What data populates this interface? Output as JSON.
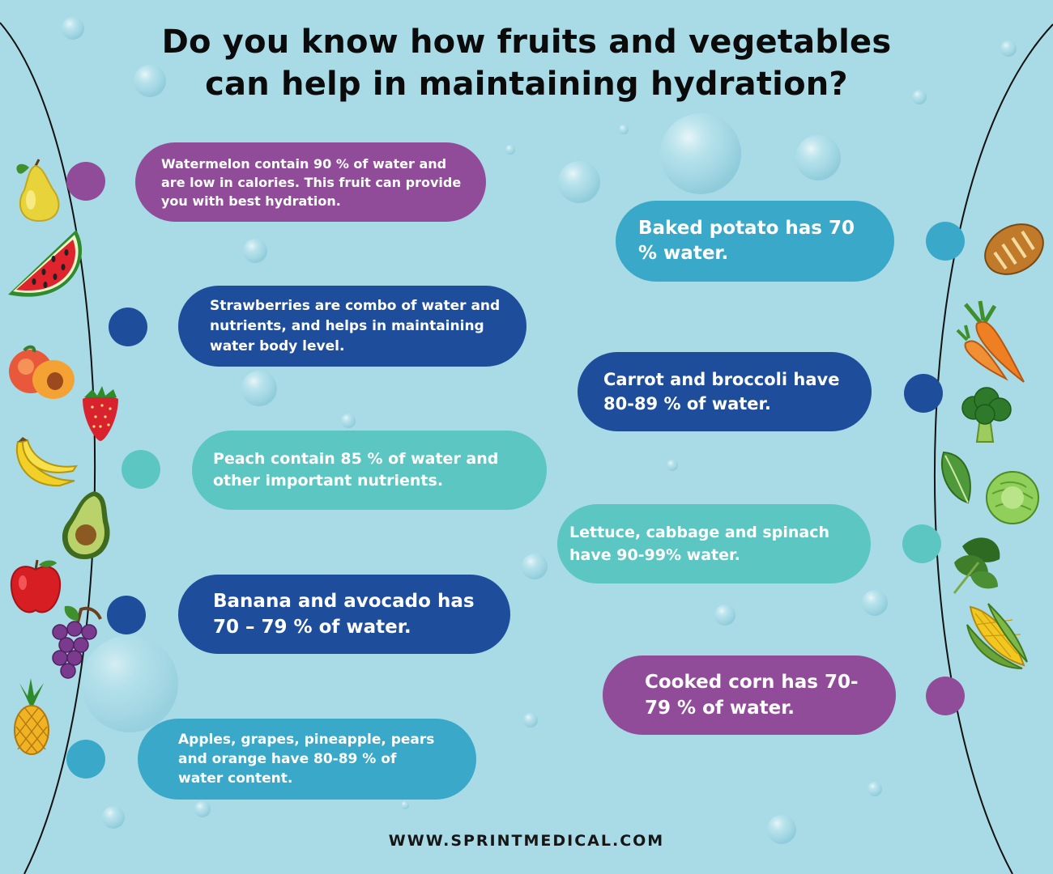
{
  "title": {
    "line1": "Do you know how fruits and vegetables",
    "line2": "can help in maintaining hydration?"
  },
  "colors": {
    "background": "#a9dbe6",
    "purple": "#914c99",
    "navy": "#1e4d9b",
    "teal": "#5cc6c3",
    "sky_blue": "#3aa9c9"
  },
  "fruit_facts": [
    {
      "text": "Watermelon contain 90 % of water and are low in calories. This fruit can provide you with best hydration.",
      "color": "purple"
    },
    {
      "text": "Strawberries are combo of water and nutrients, and helps in maintaining water body level.",
      "color": "navy"
    },
    {
      "text": "Peach contain 85 % of water and other important nutrients.",
      "color": "teal"
    },
    {
      "text": "Banana and avocado has 70 – 79 % of water.",
      "color": "navy"
    },
    {
      "text": "Apples, grapes, pineapple, pears and orange have 80-89 % of water content.",
      "color": "sky_blue"
    }
  ],
  "vegetable_facts": [
    {
      "text": "Baked potato has 70 % water.",
      "color": "sky_blue"
    },
    {
      "text": "Carrot and broccoli have 80-89 % of water.",
      "color": "navy"
    },
    {
      "text": "Lettuce, cabbage and spinach have 90-99% water.",
      "color": "teal"
    },
    {
      "text": "Cooked corn has 70-79 % of water.",
      "color": "purple"
    }
  ],
  "fruit_icons": [
    "pear-icon",
    "watermelon-icon",
    "peach-icon",
    "strawberry-icon",
    "banana-icon",
    "avocado-icon",
    "apple-icon",
    "grapes-icon",
    "pineapple-icon"
  ],
  "vegetable_icons": [
    "potato-icon",
    "carrot-icon",
    "broccoli-icon",
    "spinach-leaf-icon",
    "cabbage-icon",
    "spinach-icon",
    "corn-icon"
  ],
  "footer": {
    "website": "WWW.SPRINTMEDICAL.COM"
  }
}
